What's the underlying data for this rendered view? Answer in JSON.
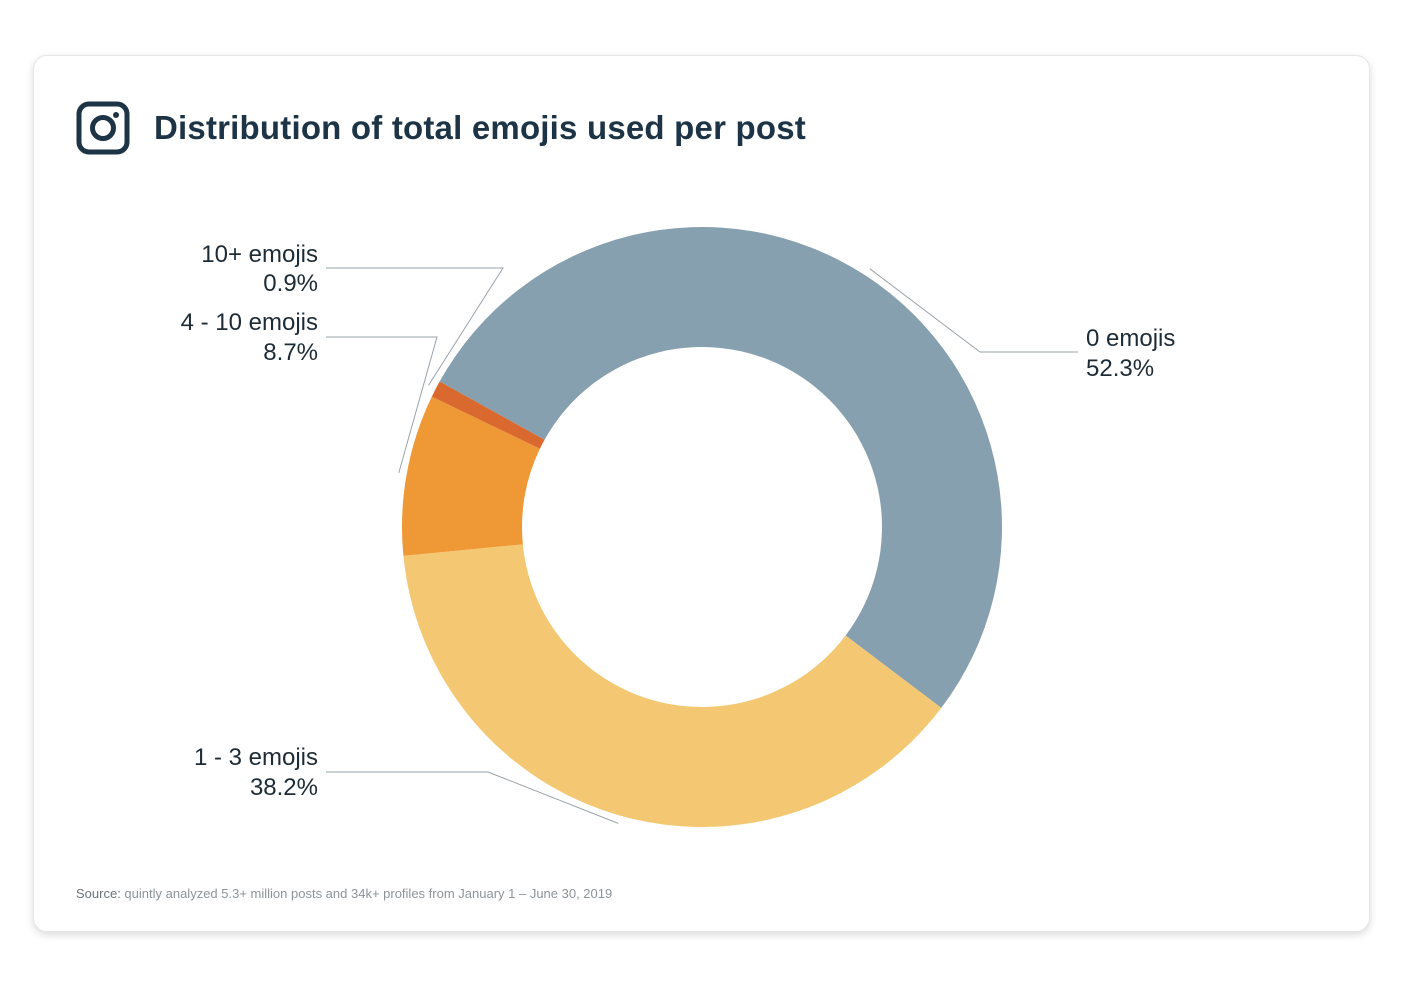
{
  "header": {
    "title": "Distribution of total emojis used per post",
    "icon": "instagram-icon"
  },
  "chart_data": {
    "type": "pie",
    "variant": "donut",
    "title": "Distribution of total emojis used per post",
    "unit": "%",
    "slices": [
      {
        "name": "0 emojis",
        "value": 52.3,
        "value_label": "52.3%",
        "color": "#87a0b0"
      },
      {
        "name": "1 - 3 emojis",
        "value": 38.2,
        "value_label": "38.2%",
        "color": "#f4c873"
      },
      {
        "name": "4 - 10 emojis",
        "value": 8.7,
        "value_label": "8.7%",
        "color": "#ef9836"
      },
      {
        "name": "10+ emojis",
        "value": 0.9,
        "value_label": "0.9%",
        "color": "#d9692e"
      }
    ],
    "source_prefix": "Source:",
    "source_text": " quintly analyzed 5.3+ million posts and 34k+ profiles from January 1 – June 30, 2019"
  }
}
